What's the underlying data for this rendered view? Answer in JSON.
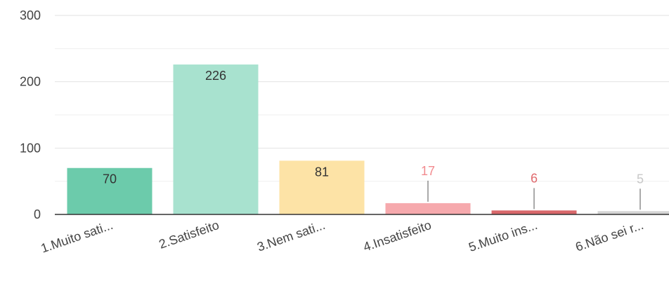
{
  "chart_data": {
    "type": "bar",
    "categories": [
      "1.Muito sati...",
      "2.Satisfeito",
      "3.Nem sati...",
      "4.Insatisfeito",
      "5.Muito ins...",
      "6.Não sei r..."
    ],
    "values": [
      70,
      226,
      81,
      17,
      6,
      5
    ],
    "data_labels": [
      "70",
      "226",
      "81",
      "17",
      "6",
      "5"
    ],
    "colors": [
      "#6ccbab",
      "#a8e2cf",
      "#fde3a6",
      "#f6a9ad",
      "#d9686b",
      "#d4d4d4"
    ],
    "label_colors": [
      "#333333",
      "#333333",
      "#333333",
      "#f28b8f",
      "#e06a6e",
      "#c8c8c8"
    ],
    "yticks": [
      "0",
      "100",
      "200",
      "300"
    ],
    "ylim": [
      0,
      300
    ],
    "grid": true,
    "legend": "none"
  }
}
